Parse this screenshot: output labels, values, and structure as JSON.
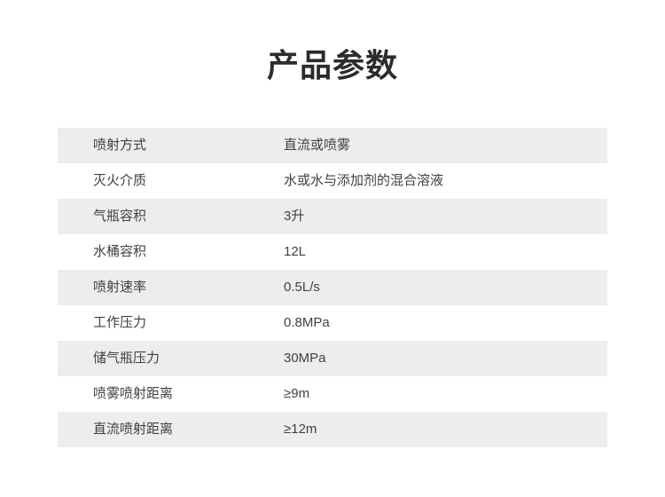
{
  "page": {
    "title": "产品参数"
  },
  "table": {
    "rows": [
      {
        "label": "喷射方式",
        "value": "直流或喷雾"
      },
      {
        "label": "灭火介质",
        "value": "水或水与添加剂的混合溶液"
      },
      {
        "label": "气瓶容积",
        "value": "3升"
      },
      {
        "label": "水桶容积",
        "value": "12L"
      },
      {
        "label": "喷射速率",
        "value": "0.5L/s"
      },
      {
        "label": "工作压力",
        "value": "0.8MPa"
      },
      {
        "label": "储气瓶压力",
        "value": "30MPa"
      },
      {
        "label": "喷雾喷射距离",
        "value": "≥9m"
      },
      {
        "label": "直流喷射距离",
        "value": "≥12m"
      }
    ]
  },
  "colors": {
    "row_alt_bg": "#ededed",
    "row_bg": "#ffffff",
    "text": "#404040",
    "title": "#2b2b2b"
  }
}
